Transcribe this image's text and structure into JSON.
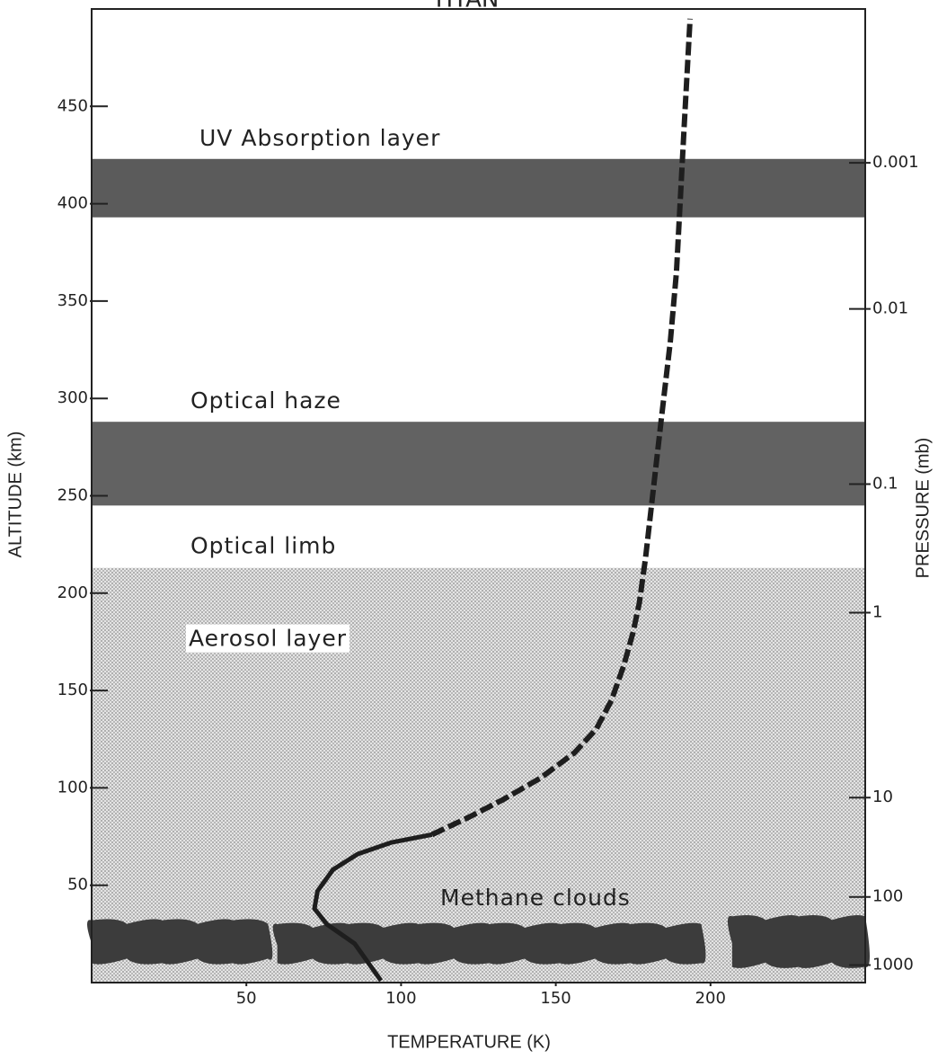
{
  "chart_data": {
    "type": "line",
    "title": "TITAN",
    "xlabel": "TEMPERATURE (K)",
    "ylabel": "ALTITUDE (km)",
    "y2label": "PRESSURE (mb)",
    "xlim": [
      0,
      250
    ],
    "ylim": [
      0,
      500
    ],
    "xticks": [
      50,
      100,
      150,
      200
    ],
    "yticks": [
      50,
      100,
      150,
      200,
      250,
      300,
      350,
      400,
      450
    ],
    "pressure_ticks": [
      {
        "pressure": 0.001,
        "altitude": 421
      },
      {
        "pressure": 0.01,
        "altitude": 346
      },
      {
        "pressure": 0.1,
        "altitude": 256
      },
      {
        "pressure": 1,
        "altitude": 190
      },
      {
        "pressure": 10,
        "altitude": 95
      },
      {
        "pressure": 100,
        "altitude": 44
      },
      {
        "pressure": 1000,
        "altitude": 9
      }
    ],
    "bands": [
      {
        "label": "UV Absorption layer",
        "bottom": 393,
        "top": 423,
        "color": "#4d4d4d"
      },
      {
        "label": "Optical haze",
        "bottom": 245,
        "top": 288,
        "color": "#555555"
      }
    ],
    "aerosol": {
      "label": "Aerosol layer",
      "top_label": "Optical limb",
      "bottom": 0,
      "top": 213
    },
    "clouds": {
      "label": "Methane clouds",
      "color": "#3c3c3c",
      "blobs": [
        {
          "from": 0,
          "to": 57,
          "bottom": 10,
          "top": 32
        },
        {
          "from": 60,
          "to": 197,
          "bottom": 10,
          "top": 30
        },
        {
          "from": 207,
          "to": 250,
          "bottom": 8,
          "top": 34
        }
      ]
    },
    "series": [
      {
        "color": "#1e1e1e",
        "style": "solid",
        "x": [
          93.5,
          85,
          76,
          72,
          73,
          78,
          86,
          97,
          110
        ],
        "values": [
          1,
          20,
          30,
          38,
          47,
          58,
          66,
          72,
          76
        ]
      },
      {
        "color": "#1e1e1e",
        "style": "dashed",
        "x": [
          110,
          122,
          133,
          145,
          156,
          163,
          168,
          172,
          175,
          177,
          179,
          181,
          184,
          187,
          189,
          190,
          191.5,
          193.4
        ],
        "values": [
          76,
          85,
          94,
          105,
          118,
          130,
          145,
          163,
          180,
          195,
          218,
          246,
          288,
          329,
          365,
          395,
          440,
          495
        ]
      }
    ]
  }
}
